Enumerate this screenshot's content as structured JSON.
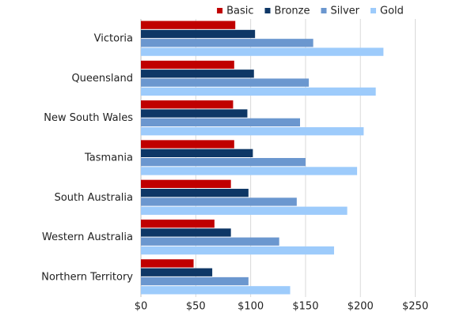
{
  "chart_data": {
    "type": "hbar",
    "categories": [
      "Victoria",
      "Queensland",
      "New South Wales",
      "Tasmania",
      "South Australia",
      "Western Australia",
      "Northern Territory"
    ],
    "series": [
      {
        "name": "Basic",
        "color": "#c00000",
        "values": [
          86,
          85,
          84,
          85,
          82,
          67,
          48
        ]
      },
      {
        "name": "Bronze",
        "color": "#0e3766",
        "values": [
          104,
          103,
          97,
          102,
          98,
          82,
          65
        ]
      },
      {
        "name": "Silver",
        "color": "#6b97cf",
        "values": [
          157,
          153,
          145,
          150,
          142,
          126,
          98
        ]
      },
      {
        "name": "Gold",
        "color": "#9dcbfb",
        "values": [
          221,
          214,
          203,
          197,
          188,
          176,
          136
        ]
      }
    ],
    "xlim": [
      0,
      290
    ],
    "xticks": [
      {
        "value": 0,
        "label": "$0"
      },
      {
        "value": 50,
        "label": "$50"
      },
      {
        "value": 100,
        "label": "$100"
      },
      {
        "value": 150,
        "label": "$150"
      },
      {
        "value": 200,
        "label": "$200"
      },
      {
        "value": 250,
        "label": "$250"
      }
    ],
    "grid": true,
    "legend": "top"
  }
}
